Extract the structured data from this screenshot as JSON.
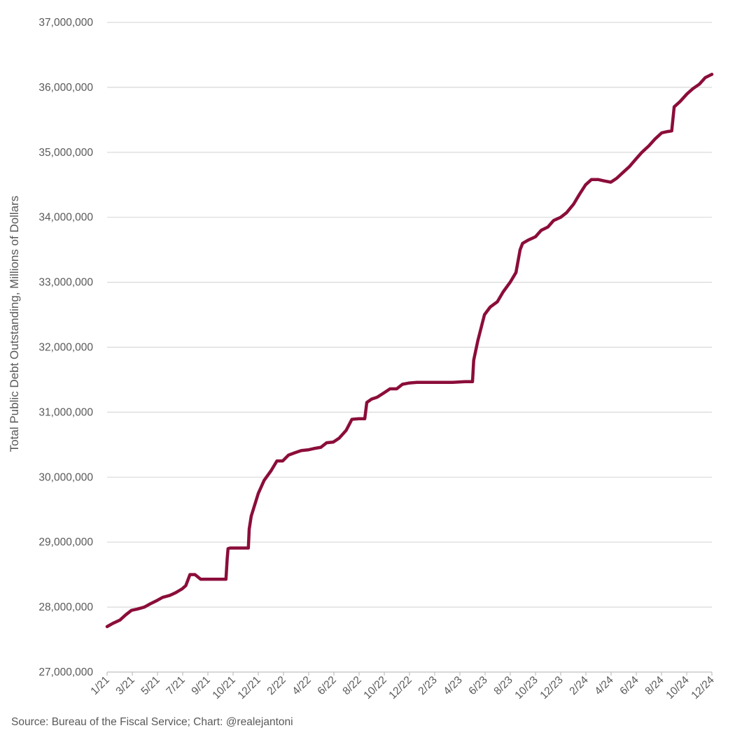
{
  "chart_data": {
    "type": "line",
    "title": "",
    "xlabel": "",
    "ylabel": "Total Public Debt Outstanding, Millions of Dollars",
    "source": "Source: Bureau of the Fiscal Service; Chart: @realejantoni",
    "ylim": [
      27000000,
      37000000
    ],
    "y_ticks": [
      "27,000,000",
      "28,000,000",
      "29,000,000",
      "30,000,000",
      "31,000,000",
      "32,000,000",
      "33,000,000",
      "34,000,000",
      "35,000,000",
      "36,000,000",
      "37,000,000"
    ],
    "x_ticks": [
      "1/21",
      "3/21",
      "5/21",
      "7/21",
      "9/21",
      "10/21",
      "12/21",
      "2/22",
      "4/22",
      "6/22",
      "8/22",
      "10/22",
      "12/22",
      "2/23",
      "4/23",
      "6/23",
      "8/23",
      "10/23",
      "12/23",
      "2/24",
      "4/24",
      "6/24",
      "8/24",
      "10/24",
      "12/24"
    ],
    "grid": true,
    "legend": "none",
    "color": "#8b0d3a",
    "series": [
      {
        "x": [
          "2021-01-01",
          "2021-01-15",
          "2021-02-01",
          "2021-02-15",
          "2021-03-01",
          "2021-03-15",
          "2021-04-01",
          "2021-04-15",
          "2021-05-01",
          "2021-05-15",
          "2021-06-01",
          "2021-06-15",
          "2021-07-01",
          "2021-07-10",
          "2021-07-20",
          "2021-08-01",
          "2021-08-15",
          "2021-09-01",
          "2021-09-15",
          "2021-10-01",
          "2021-10-15",
          "2021-10-18",
          "2021-10-20",
          "2021-10-25",
          "2021-11-15",
          "2021-12-08",
          "2021-12-10",
          "2021-12-15",
          "2022-01-01",
          "2022-01-15",
          "2022-02-01",
          "2022-02-15",
          "2022-03-01",
          "2022-03-15",
          "2022-04-01",
          "2022-04-15",
          "2022-05-01",
          "2022-05-15",
          "2022-06-01",
          "2022-06-15",
          "2022-07-01",
          "2022-07-15",
          "2022-08-01",
          "2022-08-15",
          "2022-09-01",
          "2022-09-15",
          "2022-09-20",
          "2022-10-01",
          "2022-10-15",
          "2022-11-01",
          "2022-11-15",
          "2022-12-01",
          "2022-12-15",
          "2023-01-01",
          "2023-01-19",
          "2023-02-15",
          "2023-03-15",
          "2023-04-15",
          "2023-05-15",
          "2023-06-02",
          "2023-06-05",
          "2023-06-15",
          "2023-07-01",
          "2023-07-15",
          "2023-08-01",
          "2023-08-15",
          "2023-09-01",
          "2023-09-15",
          "2023-09-25",
          "2023-10-01",
          "2023-10-15",
          "2023-11-01",
          "2023-11-15",
          "2023-12-01",
          "2023-12-15",
          "2024-01-01",
          "2024-01-15",
          "2024-02-01",
          "2024-02-15",
          "2024-03-01",
          "2024-03-15",
          "2024-04-01",
          "2024-04-15",
          "2024-05-01",
          "2024-05-15",
          "2024-06-01",
          "2024-06-15",
          "2024-07-01",
          "2024-07-15",
          "2024-08-01",
          "2024-08-15",
          "2024-09-01",
          "2024-09-15",
          "2024-09-25",
          "2024-10-01",
          "2024-10-15",
          "2024-11-01",
          "2024-11-15",
          "2024-12-01",
          "2024-12-15",
          "2024-12-31"
        ],
        "y": [
          27700000,
          27750000,
          27800000,
          27880000,
          27950000,
          27970000,
          28000000,
          28050000,
          28100000,
          28150000,
          28180000,
          28220000,
          28280000,
          28330000,
          28500000,
          28500000,
          28430000,
          28430000,
          28430000,
          28430000,
          28430000,
          28750000,
          28900000,
          28910000,
          28910000,
          28910000,
          29200000,
          29400000,
          29750000,
          29950000,
          30100000,
          30250000,
          30250000,
          30340000,
          30380000,
          30410000,
          30420000,
          30440000,
          30460000,
          30530000,
          30540000,
          30600000,
          30720000,
          30890000,
          30900000,
          30900000,
          31150000,
          31200000,
          31230000,
          31300000,
          31360000,
          31360000,
          31430000,
          31450000,
          31460000,
          31460000,
          31460000,
          31460000,
          31470000,
          31470000,
          31800000,
          32100000,
          32500000,
          32620000,
          32700000,
          32850000,
          33000000,
          33150000,
          33500000,
          33600000,
          33650000,
          33700000,
          33800000,
          33850000,
          33950000,
          34000000,
          34070000,
          34200000,
          34350000,
          34500000,
          34580000,
          34580000,
          34560000,
          34540000,
          34600000,
          34700000,
          34780000,
          34900000,
          35000000,
          35100000,
          35200000,
          35300000,
          35320000,
          35330000,
          35700000,
          35780000,
          35900000,
          35980000,
          36050000,
          36150000,
          36200000
        ]
      }
    ]
  }
}
